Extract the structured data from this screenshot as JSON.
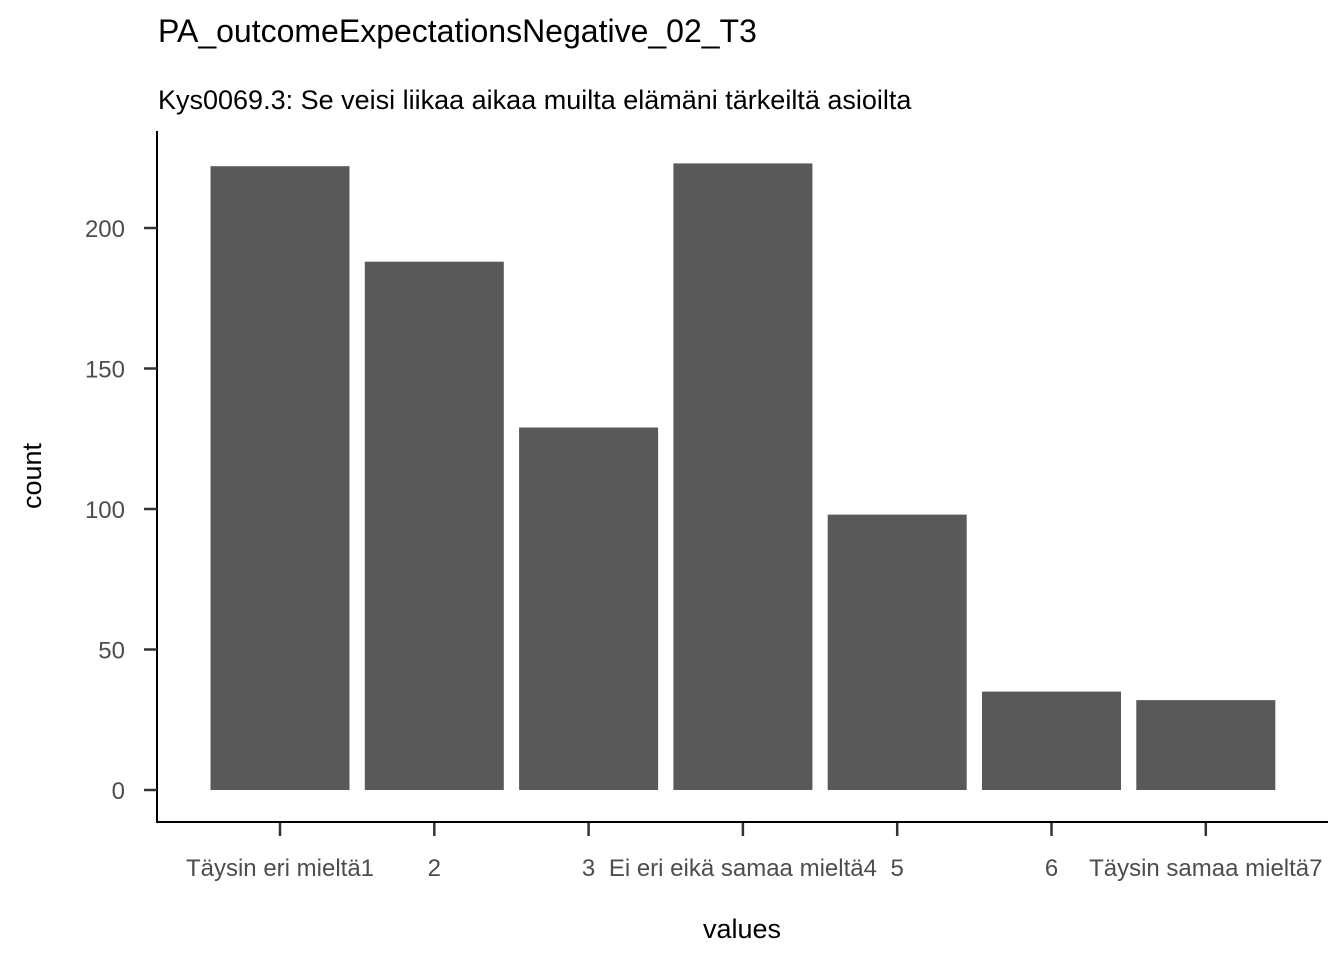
{
  "chart_data": {
    "type": "bar",
    "title": "PA_outcomeExpectationsNegative_02_T3",
    "subtitle": "Kys0069.3: Se veisi liikaa aikaa muilta elämäni tärkeiltä asioilta",
    "xlabel": "values",
    "ylabel": "count",
    "categories": [
      "Täysin eri mieltä1",
      "2",
      "3",
      "Ei eri eikä samaa mieltä4",
      "5",
      "6",
      "Täysin samaa mieltä7"
    ],
    "values": [
      222,
      188,
      129,
      223,
      98,
      35,
      32
    ],
    "ylim": [
      0,
      235
    ],
    "yticks": [
      0,
      50,
      100,
      150,
      200
    ],
    "grid": false,
    "bar_color": "#595959"
  }
}
